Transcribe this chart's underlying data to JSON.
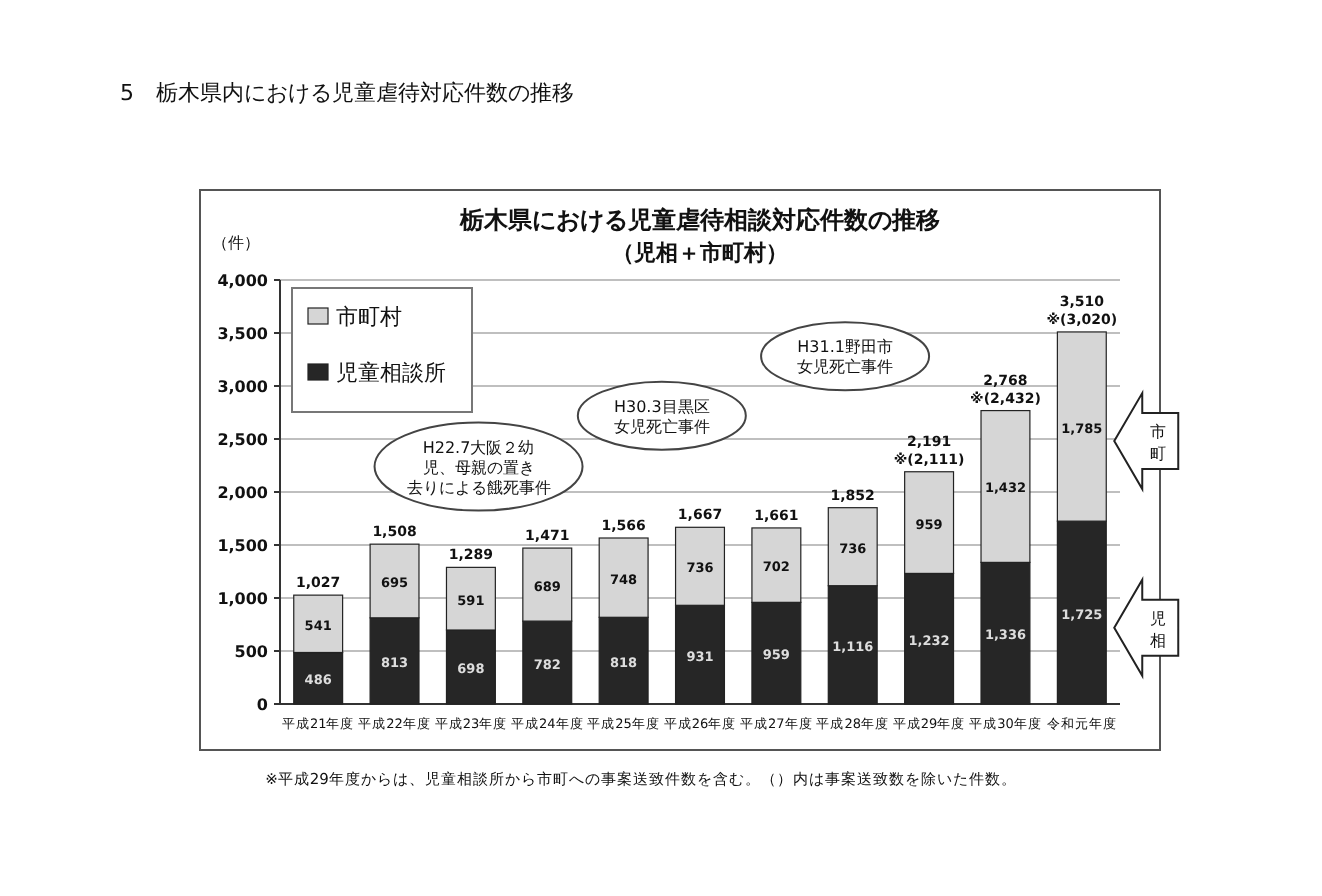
{
  "chart_data": {
    "type": "bar",
    "stacked": true,
    "title": "栃木県における児童虐待相談対応件数の推移",
    "subtitle": "（児相＋市町村）",
    "ylabel": "（件）",
    "annotations": [
      "5　栃木県内における児童虐待対応件数の推移",
      "H22.7大阪２幼児、母親の置き去りによる餓死事件",
      "H30.3目黒区女児死亡事件",
      "H31.1野田市女児死亡事件",
      "市町",
      "児相",
      "※平成29年度からは、児童相談所から市町への事案送致件数を含む。（）内は事案送致数を除いた件数。"
    ],
    "categories": [
      "平成21年度",
      "平成22年度",
      "平成23年度",
      "平成24年度",
      "平成25年度",
      "平成26年度",
      "平成27年度",
      "平成28年度",
      "平成29年度",
      "平成30年度",
      "令和元年度"
    ],
    "series": [
      {
        "name": "児童相談所",
        "color": "#262626",
        "values": [
          486,
          813,
          698,
          782,
          818,
          931,
          959,
          1116,
          1232,
          1336,
          1725
        ],
        "value_labels": [
          "486",
          "813",
          "698",
          "782",
          "818",
          "931",
          "959",
          "1,116",
          "1,232",
          "1,336",
          "1,725"
        ]
      },
      {
        "name": "市町村",
        "color": "#d6d6d6",
        "values": [
          541,
          695,
          591,
          689,
          748,
          736,
          702,
          736,
          959,
          1432,
          1785
        ],
        "value_labels": [
          "541",
          "695",
          "591",
          "689",
          "748",
          "736",
          "702",
          "736",
          "959",
          "1,432",
          "1,785"
        ]
      }
    ],
    "totals": [
      "1,027",
      "1,508",
      "1,289",
      "1,471",
      "1,566",
      "1,667",
      "1,661",
      "1,852",
      "2,191\n※(2,111)",
      "2,768\n※(2,432)",
      "3,510\n※(3,020)"
    ],
    "ylim": [
      0,
      4000
    ],
    "yticks": [
      0,
      500,
      {
        "value": 1000,
        "label": "1,000"
      },
      {
        "value": 1500,
        "label": "1,500"
      },
      {
        "value": 2000,
        "label": "2,000"
      },
      {
        "value": 2500,
        "label": "2,500"
      },
      {
        "value": 3000,
        "label": "3,000"
      },
      {
        "value": 3500,
        "label": "3,500"
      },
      {
        "value": 4000,
        "label": "4,000"
      }
    ],
    "grid": "y",
    "legend": "top left"
  }
}
